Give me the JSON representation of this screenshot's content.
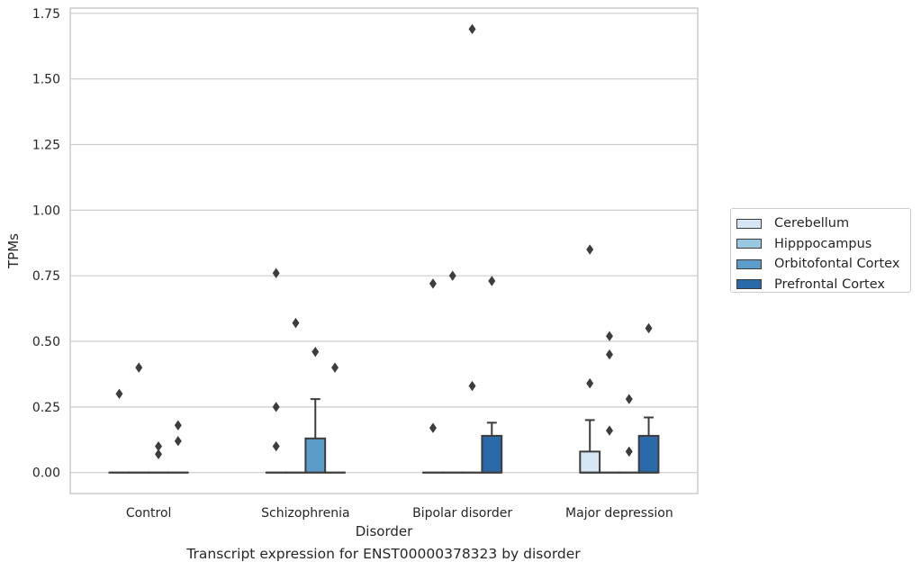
{
  "chart_data": {
    "type": "box",
    "title": "Transcript expression for ENST00000378323 by disorder",
    "xlabel": "Disorder",
    "ylabel": "TPMs",
    "ylim": [
      -0.08,
      1.77
    ],
    "yticks": [
      0.0,
      0.25,
      0.5,
      0.75,
      1.0,
      1.25,
      1.5,
      1.75
    ],
    "ytick_labels": [
      "0.00",
      "0.25",
      "0.50",
      "0.75",
      "1.00",
      "1.25",
      "1.50",
      "1.75"
    ],
    "grid": "horizontal",
    "legend_position": "right",
    "categories": [
      "Control",
      "Schizophrenia",
      "Bipolar disorder",
      "Major depression"
    ],
    "series": [
      {
        "name": "Cerebellum",
        "color": "#d6e6f4",
        "boxes": [
          {
            "q1": 0,
            "median": 0,
            "q3": 0,
            "whisker_low": 0,
            "whisker_high": 0,
            "outliers": [
              0.3
            ]
          },
          {
            "q1": 0,
            "median": 0,
            "q3": 0,
            "whisker_low": 0,
            "whisker_high": 0,
            "outliers": [
              0.76,
              0.25,
              0.1
            ]
          },
          {
            "q1": 0,
            "median": 0,
            "q3": 0,
            "whisker_low": 0,
            "whisker_high": 0,
            "outliers": [
              0.72,
              0.17
            ]
          },
          {
            "q1": 0,
            "median": 0,
            "q3": 0.08,
            "whisker_low": 0,
            "whisker_high": 0.2,
            "outliers": [
              0.85,
              0.34
            ]
          }
        ]
      },
      {
        "name": "Hipppocampus",
        "color": "#9ac8e0",
        "boxes": [
          {
            "q1": 0,
            "median": 0,
            "q3": 0,
            "whisker_low": 0,
            "whisker_high": 0,
            "outliers": [
              0.4
            ]
          },
          {
            "q1": 0,
            "median": 0,
            "q3": 0,
            "whisker_low": 0,
            "whisker_high": 0,
            "outliers": [
              0.57
            ]
          },
          {
            "q1": 0,
            "median": 0,
            "q3": 0,
            "whisker_low": 0,
            "whisker_high": 0,
            "outliers": [
              0.75
            ]
          },
          {
            "q1": 0,
            "median": 0,
            "q3": 0,
            "whisker_low": 0,
            "whisker_high": 0,
            "outliers": [
              0.52,
              0.45,
              0.16
            ]
          }
        ]
      },
      {
        "name": "Orbitofontal Cortex",
        "color": "#5b9cc9",
        "boxes": [
          {
            "q1": 0,
            "median": 0,
            "q3": 0,
            "whisker_low": 0,
            "whisker_high": 0,
            "outliers": [
              0.1,
              0.07
            ]
          },
          {
            "q1": 0,
            "median": 0,
            "q3": 0.13,
            "whisker_low": 0,
            "whisker_high": 0.28,
            "outliers": [
              0.46
            ]
          },
          {
            "q1": 0,
            "median": 0,
            "q3": 0,
            "whisker_low": 0,
            "whisker_high": 0,
            "outliers": [
              1.69,
              0.33
            ]
          },
          {
            "q1": 0,
            "median": 0,
            "q3": 0,
            "whisker_low": 0,
            "whisker_high": 0,
            "outliers": [
              0.28,
              0.08
            ]
          }
        ]
      },
      {
        "name": "Prefrontal Cortex",
        "color": "#2a6aa8",
        "boxes": [
          {
            "q1": 0,
            "median": 0,
            "q3": 0,
            "whisker_low": 0,
            "whisker_high": 0,
            "outliers": [
              0.18,
              0.12
            ]
          },
          {
            "q1": 0,
            "median": 0,
            "q3": 0,
            "whisker_low": 0,
            "whisker_high": 0,
            "outliers": [
              0.4
            ]
          },
          {
            "q1": 0,
            "median": 0,
            "q3": 0.14,
            "whisker_low": 0,
            "whisker_high": 0.19,
            "outliers": [
              0.73
            ]
          },
          {
            "q1": 0,
            "median": 0,
            "q3": 0.14,
            "whisker_low": 0,
            "whisker_high": 0.21,
            "outliers": [
              0.55
            ]
          }
        ]
      }
    ]
  }
}
